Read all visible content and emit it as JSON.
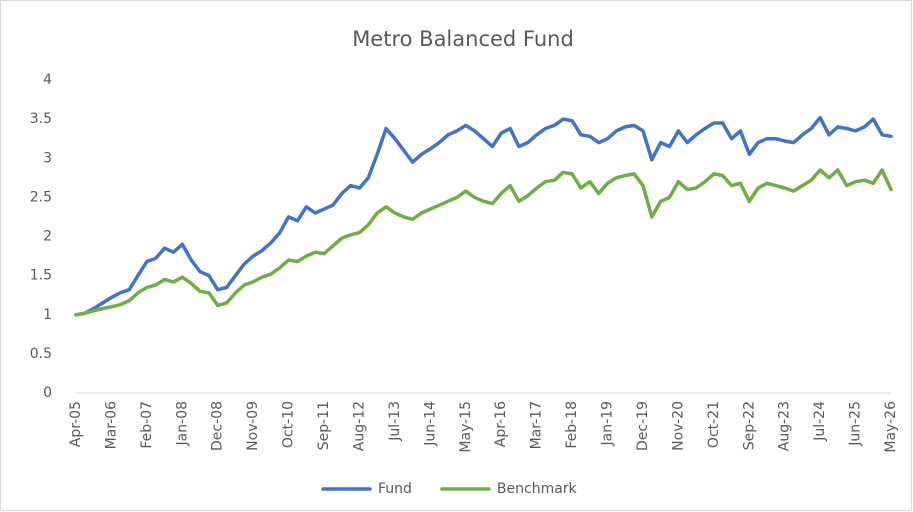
{
  "chart_data": {
    "type": "line",
    "title": "Metro Balanced Fund",
    "categories": [
      "Apr-05",
      null,
      null,
      null,
      "Mar-06",
      null,
      null,
      null,
      "Feb-07",
      null,
      null,
      null,
      "Jan-08",
      null,
      null,
      null,
      "Dec-08",
      null,
      null,
      null,
      "Nov-09",
      null,
      null,
      null,
      "Oct-10",
      null,
      null,
      null,
      "Sep-11",
      null,
      null,
      null,
      "Aug-12",
      null,
      null,
      null,
      "Jul-13",
      null,
      null,
      null,
      "Jun-14",
      null,
      null,
      null,
      "May-15",
      null,
      null,
      null,
      "Apr-16",
      null,
      null,
      null,
      "Mar-17",
      null,
      null,
      null,
      "Feb-18",
      null,
      null,
      null,
      "Jan-19",
      null,
      null,
      null,
      "Dec-19",
      null,
      null,
      null,
      "Nov-20",
      null,
      null,
      null,
      "Oct-21",
      null,
      null,
      null,
      "Sep-22",
      null,
      null,
      null,
      "Aug-23",
      null,
      null,
      null,
      "Jul-24",
      null,
      null,
      null,
      "Jun-25",
      null,
      null,
      null,
      "May-26"
    ],
    "series": [
      {
        "name": "Fund",
        "color": "#4472c4",
        "values": [
          1.0,
          1.02,
          1.08,
          1.15,
          1.22,
          1.28,
          1.32,
          1.5,
          1.68,
          1.72,
          1.85,
          1.8,
          1.9,
          1.7,
          1.55,
          1.5,
          1.32,
          1.35,
          1.5,
          1.65,
          1.75,
          1.82,
          1.92,
          2.05,
          2.25,
          2.2,
          2.38,
          2.3,
          2.35,
          2.4,
          2.55,
          2.65,
          2.62,
          2.75,
          3.05,
          3.38,
          3.25,
          3.1,
          2.95,
          3.05,
          3.12,
          3.2,
          3.3,
          3.35,
          3.42,
          3.35,
          3.25,
          3.15,
          3.32,
          3.38,
          3.15,
          3.2,
          3.3,
          3.38,
          3.42,
          3.5,
          3.48,
          3.3,
          3.28,
          3.2,
          3.25,
          3.35,
          3.4,
          3.42,
          3.35,
          2.98,
          3.2,
          3.15,
          3.35,
          3.2,
          3.3,
          3.38,
          3.45,
          3.45,
          3.25,
          3.35,
          3.05,
          3.2,
          3.25,
          3.25,
          3.22,
          3.2,
          3.3,
          3.38,
          3.52,
          3.3,
          3.4,
          3.38,
          3.35,
          3.4,
          3.5,
          3.3,
          3.28
        ]
      },
      {
        "name": "Benchmark",
        "color": "#70ad47",
        "values": [
          1.0,
          1.02,
          1.05,
          1.08,
          1.1,
          1.13,
          1.18,
          1.28,
          1.35,
          1.38,
          1.45,
          1.42,
          1.48,
          1.4,
          1.3,
          1.28,
          1.12,
          1.15,
          1.28,
          1.38,
          1.42,
          1.48,
          1.52,
          1.6,
          1.7,
          1.68,
          1.75,
          1.8,
          1.78,
          1.88,
          1.98,
          2.02,
          2.05,
          2.15,
          2.3,
          2.38,
          2.3,
          2.25,
          2.22,
          2.3,
          2.35,
          2.4,
          2.45,
          2.5,
          2.58,
          2.5,
          2.45,
          2.42,
          2.55,
          2.65,
          2.45,
          2.52,
          2.62,
          2.7,
          2.72,
          2.82,
          2.8,
          2.62,
          2.7,
          2.55,
          2.68,
          2.75,
          2.78,
          2.8,
          2.65,
          2.25,
          2.45,
          2.5,
          2.7,
          2.6,
          2.62,
          2.7,
          2.8,
          2.78,
          2.65,
          2.68,
          2.45,
          2.62,
          2.68,
          2.65,
          2.62,
          2.58,
          2.65,
          2.72,
          2.85,
          2.75,
          2.85,
          2.65,
          2.7,
          2.72,
          2.68,
          2.85,
          2.6
        ]
      }
    ],
    "ylim": [
      0,
      4
    ],
    "yticks": [
      0,
      0.5,
      1,
      1.5,
      2,
      2.5,
      3,
      3.5,
      4
    ],
    "grid": false,
    "legend": "bottom"
  }
}
